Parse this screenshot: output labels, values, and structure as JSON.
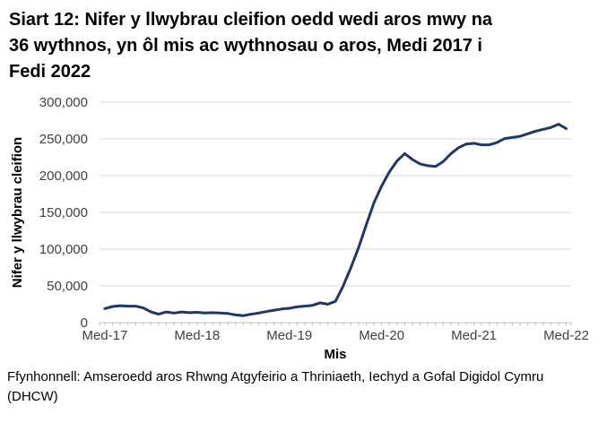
{
  "title": "Siart 12: Nifer y llwybrau cleifion oedd wedi aros mwy na 36 wythnos, yn ôl mis ac wythnosau o aros, Medi 2017 i Fedi 2022",
  "source": "Ffynhonnell: Amseroedd aros Rhwng Atgyfeirio a Thriniaeth, Iechyd a Gofal Digidol Cymru (DHCW)",
  "colors": {
    "line": "#1f3864",
    "gridline": "#d9d9d9",
    "axis": "#bfbfbf",
    "tick_text": "#404040",
    "background": "#ffffff"
  },
  "chart_data": {
    "type": "line",
    "title": "Siart 12: Nifer y llwybrau cleifion oedd wedi aros mwy na 36 wythnos, yn ôl mis ac wythnosau o aros, Medi 2017 i Fedi 2022",
    "xlabel": "Mis",
    "ylabel": "Nifer y llwybrau cleifion",
    "ylim": [
      0,
      300000
    ],
    "yticks": [
      0,
      50000,
      100000,
      150000,
      200000,
      250000,
      300000
    ],
    "grid": true,
    "legend": "none",
    "x_range_note": "monthly data from Medi 2017 to Medi 2022 (61 points)",
    "x_tick_labels": [
      {
        "index": 0,
        "label": "Med-17"
      },
      {
        "index": 12,
        "label": "Med-18"
      },
      {
        "index": 24,
        "label": "Med-19"
      },
      {
        "index": 36,
        "label": "Med-20"
      },
      {
        "index": 48,
        "label": "Med-21"
      },
      {
        "index": 60,
        "label": "Med-22"
      }
    ],
    "series": [
      {
        "name": "Nifer y llwybrau cleifion yn aros mwy na 36 wythnos",
        "values": [
          19000,
          22000,
          23000,
          22500,
          22500,
          20000,
          14500,
          11500,
          14500,
          13000,
          14500,
          13500,
          14000,
          13000,
          13500,
          13000,
          12500,
          10500,
          9500,
          11500,
          13000,
          15000,
          17000,
          18500,
          19500,
          21500,
          22500,
          23500,
          27000,
          25000,
          29000,
          50000,
          75000,
          102000,
          133000,
          163000,
          186000,
          205000,
          220000,
          230000,
          222000,
          216000,
          213500,
          212500,
          219000,
          230000,
          238000,
          243000,
          244000,
          242000,
          242000,
          245000,
          250500,
          252000,
          253500,
          257000,
          260500,
          263000,
          265500,
          270000,
          264000
        ]
      }
    ]
  }
}
